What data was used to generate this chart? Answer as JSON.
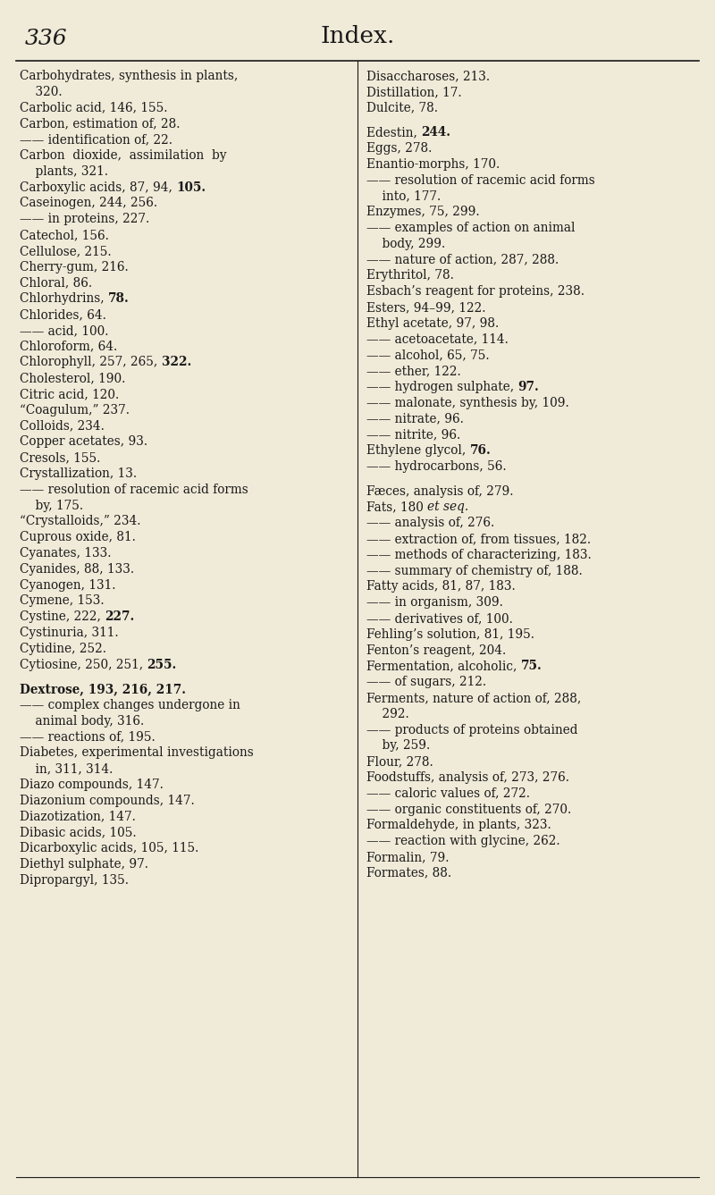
{
  "background_color": "#f0ead8",
  "page_number": "336",
  "title": "Index.",
  "header_line_color": "#1a1a1a",
  "text_color": "#1a1a1a",
  "font_size": 9.8,
  "title_font_size": 19,
  "page_num_font_size": 18,
  "left_column": [
    {
      "text": "Carbohydrates, synthesis in plants,",
      "indent": 0,
      "bold_nums": false
    },
    {
      "text": "    320.",
      "indent": 0,
      "bold_nums": false
    },
    {
      "text": "Carbolic acid, 146, 155.",
      "indent": 0,
      "bold_nums": false
    },
    {
      "text": "Carbon, estimation of, 28.",
      "indent": 0,
      "bold_nums": false
    },
    {
      "text": "—— identification of, 22.",
      "indent": 0,
      "bold_nums": false
    },
    {
      "text": "Carbon  dioxide,  assimilation  by",
      "indent": 0,
      "bold_nums": false
    },
    {
      "text": "    plants, 321.",
      "indent": 0,
      "bold_nums": false
    },
    {
      "text": "Carboxylic acids, 87, 94, ",
      "indent": 0,
      "bold_nums": false,
      "bold_suffix": "105."
    },
    {
      "text": "Caseinogen, 244, 256.",
      "indent": 0,
      "bold_nums": false
    },
    {
      "text": "—— in proteins, 227.",
      "indent": 0,
      "bold_nums": false
    },
    {
      "text": "Catechol, 156.",
      "indent": 0,
      "bold_nums": false
    },
    {
      "text": "Cellulose, 215.",
      "indent": 0,
      "bold_nums": false
    },
    {
      "text": "Cherry-gum, 216.",
      "indent": 0,
      "bold_nums": false
    },
    {
      "text": "Chloral, 86.",
      "indent": 0,
      "bold_nums": false
    },
    {
      "text": "Chlorhydrins, ",
      "indent": 0,
      "bold_nums": false,
      "bold_suffix": "78."
    },
    {
      "text": "Chlorides, 64.",
      "indent": 0,
      "bold_nums": false
    },
    {
      "text": "—— acid, 100.",
      "indent": 0,
      "bold_nums": false
    },
    {
      "text": "Chloroform, 64.",
      "indent": 0,
      "bold_nums": false
    },
    {
      "text": "Chlorophyll, 257, 265, ",
      "indent": 0,
      "bold_nums": false,
      "bold_suffix": "322."
    },
    {
      "text": "Cholesterol, 190.",
      "indent": 0,
      "bold_nums": false
    },
    {
      "text": "Citric acid, 120.",
      "indent": 0,
      "bold_nums": false
    },
    {
      "text": "“Coagulum,” 237.",
      "indent": 0,
      "bold_nums": false
    },
    {
      "text": "Colloids, 234.",
      "indent": 0,
      "bold_nums": false
    },
    {
      "text": "Copper acetates, 93.",
      "indent": 0,
      "bold_nums": false
    },
    {
      "text": "Cresols, 155.",
      "indent": 0,
      "bold_nums": false
    },
    {
      "text": "Crystallization, 13.",
      "indent": 0,
      "bold_nums": false
    },
    {
      "text": "—— resolution of racemic acid forms",
      "indent": 0,
      "bold_nums": false
    },
    {
      "text": "    by, 175.",
      "indent": 0,
      "bold_nums": false
    },
    {
      "text": "“Crystalloids,” 234.",
      "indent": 0,
      "bold_nums": false
    },
    {
      "text": "Cuprous oxide, 81.",
      "indent": 0,
      "bold_nums": false
    },
    {
      "text": "Cyanates, 133.",
      "indent": 0,
      "bold_nums": false
    },
    {
      "text": "Cyanides, 88, 133.",
      "indent": 0,
      "bold_nums": false
    },
    {
      "text": "Cyanogen, 131.",
      "indent": 0,
      "bold_nums": false
    },
    {
      "text": "Cymene, 153.",
      "indent": 0,
      "bold_nums": false
    },
    {
      "text": "Cystine, 222, ",
      "indent": 0,
      "bold_nums": false,
      "bold_suffix": "227."
    },
    {
      "text": "Cystinuria, 311.",
      "indent": 0,
      "bold_nums": false
    },
    {
      "text": "Cytidine, 252.",
      "indent": 0,
      "bold_nums": false
    },
    {
      "text": "Cytiosine, 250, 251, ",
      "indent": 0,
      "bold_nums": false,
      "bold_suffix": "255."
    },
    {
      "text": "",
      "indent": 0,
      "bold_nums": false
    },
    {
      "text": "Dextrose, 193, 216, 217.",
      "indent": 0,
      "bold_nums": true
    },
    {
      "text": "—— complex changes undergone in",
      "indent": 0,
      "bold_nums": false
    },
    {
      "text": "    animal body, 316.",
      "indent": 0,
      "bold_nums": false
    },
    {
      "text": "—— reactions of, 195.",
      "indent": 0,
      "bold_nums": false
    },
    {
      "text": "Diabetes, experimental investigations",
      "indent": 0,
      "bold_nums": false
    },
    {
      "text": "    in, 311, 314.",
      "indent": 0,
      "bold_nums": false
    },
    {
      "text": "Diazo compounds, 147.",
      "indent": 0,
      "bold_nums": false
    },
    {
      "text": "Diazonium compounds, 147.",
      "indent": 0,
      "bold_nums": false
    },
    {
      "text": "Diazotization, 147.",
      "indent": 0,
      "bold_nums": false
    },
    {
      "text": "Dibasic acids, 105.",
      "indent": 0,
      "bold_nums": false
    },
    {
      "text": "Dicarboxylic acids, 105, 115.",
      "indent": 0,
      "bold_nums": false
    },
    {
      "text": "Diethyl sulphate, 97.",
      "indent": 0,
      "bold_nums": false
    },
    {
      "text": "Dipropargyl, 135.",
      "indent": 0,
      "bold_nums": false
    }
  ],
  "right_column": [
    {
      "text": "Disaccharoses, 213.",
      "bold_nums": false
    },
    {
      "text": "Distillation, 17.",
      "bold_nums": false
    },
    {
      "text": "Dulcite, 78.",
      "bold_nums": false
    },
    {
      "text": "",
      "bold_nums": false
    },
    {
      "text": "Edestin, ",
      "bold_nums": false,
      "bold_suffix": "244."
    },
    {
      "text": "Eggs, 278.",
      "bold_nums": false
    },
    {
      "text": "Enantio-morphs, 170.",
      "bold_nums": false
    },
    {
      "text": "—— resolution of racemic acid forms",
      "bold_nums": false
    },
    {
      "text": "    into, 177.",
      "bold_nums": false
    },
    {
      "text": "Enzymes, 75, 299.",
      "bold_nums": false
    },
    {
      "text": "—— examples of action on animal",
      "bold_nums": false
    },
    {
      "text": "    body, 299.",
      "bold_nums": false
    },
    {
      "text": "—— nature of action, 287, 288.",
      "bold_nums": false
    },
    {
      "text": "Erythritol, 78.",
      "bold_nums": false
    },
    {
      "text": "Esbach’s reagent for proteins, 238.",
      "bold_nums": false
    },
    {
      "text": "Esters, 94–99, 122.",
      "bold_nums": false
    },
    {
      "text": "Ethyl acetate, 97, 98.",
      "bold_nums": false
    },
    {
      "text": "—— acetoacetate, 114.",
      "bold_nums": false
    },
    {
      "text": "—— alcohol, 65, 75.",
      "bold_nums": false
    },
    {
      "text": "—— ether, 122.",
      "bold_nums": false
    },
    {
      "text": "—— hydrogen sulphate, ",
      "bold_nums": false,
      "bold_suffix": "97."
    },
    {
      "text": "—— malonate, synthesis by, 109.",
      "bold_nums": false
    },
    {
      "text": "—— nitrate, 96.",
      "bold_nums": false
    },
    {
      "text": "—— nitrite, 96.",
      "bold_nums": false
    },
    {
      "text": "Ethylene glycol, ",
      "bold_nums": false,
      "bold_suffix": "76."
    },
    {
      "text": "—— hydrocarbons, 56.",
      "bold_nums": false
    },
    {
      "text": "",
      "bold_nums": false
    },
    {
      "text": "Fæces, analysis of, 279.",
      "bold_nums": false
    },
    {
      "text": "Fats, 180 ",
      "bold_nums": false,
      "italic_suffix": "et seq."
    },
    {
      "text": "—— analysis of, 276.",
      "bold_nums": false
    },
    {
      "text": "—— extraction of, from tissues, 182.",
      "bold_nums": false
    },
    {
      "text": "—— methods of characterizing, 183.",
      "bold_nums": false
    },
    {
      "text": "—— summary of chemistry of, 188.",
      "bold_nums": false
    },
    {
      "text": "Fatty acids, 81, 87, 183.",
      "bold_nums": false
    },
    {
      "text": "—— in organism, 309.",
      "bold_nums": false
    },
    {
      "text": "—— derivatives of, 100.",
      "bold_nums": false
    },
    {
      "text": "Fehling’s solution, 81, 195.",
      "bold_nums": false
    },
    {
      "text": "Fenton’s reagent, 204.",
      "bold_nums": false
    },
    {
      "text": "Fermentation, alcoholic, ",
      "bold_nums": false,
      "bold_suffix": "75."
    },
    {
      "text": "—— of sugars, 212.",
      "bold_nums": false
    },
    {
      "text": "Ferments, nature of action of, 288,",
      "bold_nums": false
    },
    {
      "text": "    292.",
      "bold_nums": false
    },
    {
      "text": "—— products of proteins obtained",
      "bold_nums": false
    },
    {
      "text": "    by, 259.",
      "bold_nums": false
    },
    {
      "text": "Flour, 278.",
      "bold_nums": false
    },
    {
      "text": "Foodstuffs, analysis of, 273, 276.",
      "bold_nums": false
    },
    {
      "text": "—— caloric values of, 272.",
      "bold_nums": false
    },
    {
      "text": "—— organic constituents of, 270.",
      "bold_nums": false
    },
    {
      "text": "Formaldehyde, in plants, 323.",
      "bold_nums": false
    },
    {
      "text": "—— reaction with glycine, 262.",
      "bold_nums": false
    },
    {
      "text": "Formalin, 79.",
      "bold_nums": false
    },
    {
      "text": "Formates, 88.",
      "bold_nums": false
    }
  ]
}
